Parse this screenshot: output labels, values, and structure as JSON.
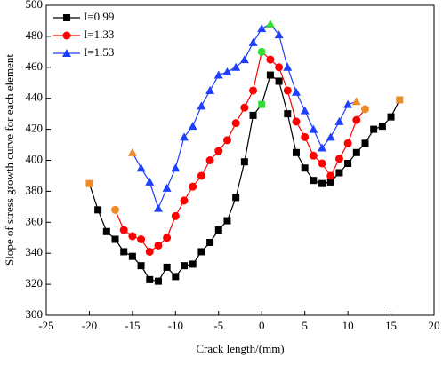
{
  "chart_data": {
    "type": "line",
    "x_label": "Crack length/(mm)",
    "y_label": "Slope of stress growth curve for each element",
    "xlim": [
      -25,
      20
    ],
    "xticks": [
      -25,
      -20,
      -15,
      -10,
      -5,
      0,
      5,
      10,
      15,
      20
    ],
    "ylim": [
      300,
      500
    ],
    "yticks": [
      300,
      320,
      340,
      360,
      380,
      400,
      420,
      440,
      460,
      480,
      500
    ],
    "legend": "upper-left",
    "series": [
      {
        "name": "I=0.99",
        "color": "#000000",
        "marker": "square",
        "x": [
          -20,
          -19,
          -18,
          -17,
          -16,
          -15,
          -14,
          -13,
          -12,
          -11,
          -10,
          -9,
          -8,
          -7,
          -6,
          -5,
          -4,
          -3,
          -2,
          -1,
          0,
          1,
          2,
          3,
          4,
          5,
          6,
          7,
          8,
          9,
          10,
          11,
          12,
          13,
          14,
          15,
          16
        ],
        "values": [
          385,
          368,
          354,
          349,
          341,
          338,
          332,
          323,
          322,
          331,
          325,
          332,
          333,
          341,
          347,
          355,
          361,
          376,
          399,
          429,
          436,
          455,
          451,
          430,
          405,
          395,
          387,
          385,
          386,
          392,
          398,
          405,
          411,
          420,
          422,
          428,
          439
        ],
        "marker_colors": [
          "#f08c28",
          "#000000",
          "#000000",
          "#000000",
          "#000000",
          "#000000",
          "#000000",
          "#000000",
          "#000000",
          "#000000",
          "#000000",
          "#000000",
          "#000000",
          "#000000",
          "#000000",
          "#000000",
          "#000000",
          "#000000",
          "#000000",
          "#000000",
          "#33dd33",
          "#000000",
          "#000000",
          "#000000",
          "#000000",
          "#000000",
          "#000000",
          "#000000",
          "#000000",
          "#000000",
          "#000000",
          "#000000",
          "#000000",
          "#000000",
          "#000000",
          "#000000",
          "#f08c28"
        ]
      },
      {
        "name": "I=1.33",
        "color": "#ff0000",
        "marker": "circle",
        "x": [
          -17,
          -16,
          -15,
          -14,
          -13,
          -12,
          -11,
          -10,
          -9,
          -8,
          -7,
          -6,
          -5,
          -4,
          -3,
          -2,
          -1,
          0,
          1,
          2,
          3,
          4,
          5,
          6,
          7,
          8,
          9,
          10,
          11,
          12
        ],
        "values": [
          368,
          355,
          351,
          349,
          341,
          345,
          350,
          364,
          374,
          383,
          390,
          400,
          406,
          413,
          424,
          434,
          445,
          470,
          465,
          460,
          445,
          425,
          415,
          403,
          398,
          390,
          401,
          411,
          426,
          433
        ],
        "marker_colors": [
          "#f08c28",
          "#ff0000",
          "#ff0000",
          "#ff0000",
          "#ff0000",
          "#ff0000",
          "#ff0000",
          "#ff0000",
          "#ff0000",
          "#ff0000",
          "#ff0000",
          "#ff0000",
          "#ff0000",
          "#ff0000",
          "#ff0000",
          "#ff0000",
          "#ff0000",
          "#33dd33",
          "#ff0000",
          "#ff0000",
          "#ff0000",
          "#ff0000",
          "#ff0000",
          "#ff0000",
          "#ff0000",
          "#ff0000",
          "#ff0000",
          "#ff0000",
          "#ff0000",
          "#f08c28"
        ]
      },
      {
        "name": "I=1.53",
        "color": "#1f3fff",
        "marker": "triangle",
        "x": [
          -15,
          -14,
          -13,
          -12,
          -11,
          -10,
          -9,
          -8,
          -7,
          -6,
          -5,
          -4,
          -3,
          -2,
          -1,
          0,
          1,
          2,
          3,
          4,
          5,
          6,
          7,
          8,
          9,
          10,
          11
        ],
        "values": [
          405,
          395,
          386,
          369,
          382,
          395,
          415,
          422,
          435,
          445,
          455,
          457,
          460,
          465,
          476,
          485,
          488,
          481,
          460,
          444,
          432,
          420,
          408,
          415,
          425,
          436,
          438
        ],
        "marker_colors": [
          "#f08c28",
          "#1f3fff",
          "#1f3fff",
          "#1f3fff",
          "#1f3fff",
          "#1f3fff",
          "#1f3fff",
          "#1f3fff",
          "#1f3fff",
          "#1f3fff",
          "#1f3fff",
          "#1f3fff",
          "#1f3fff",
          "#1f3fff",
          "#1f3fff",
          "#1f3fff",
          "#33dd33",
          "#1f3fff",
          "#1f3fff",
          "#1f3fff",
          "#1f3fff",
          "#1f3fff",
          "#1f3fff",
          "#1f3fff",
          "#1f3fff",
          "#1f3fff",
          "#f08c28"
        ]
      }
    ]
  }
}
